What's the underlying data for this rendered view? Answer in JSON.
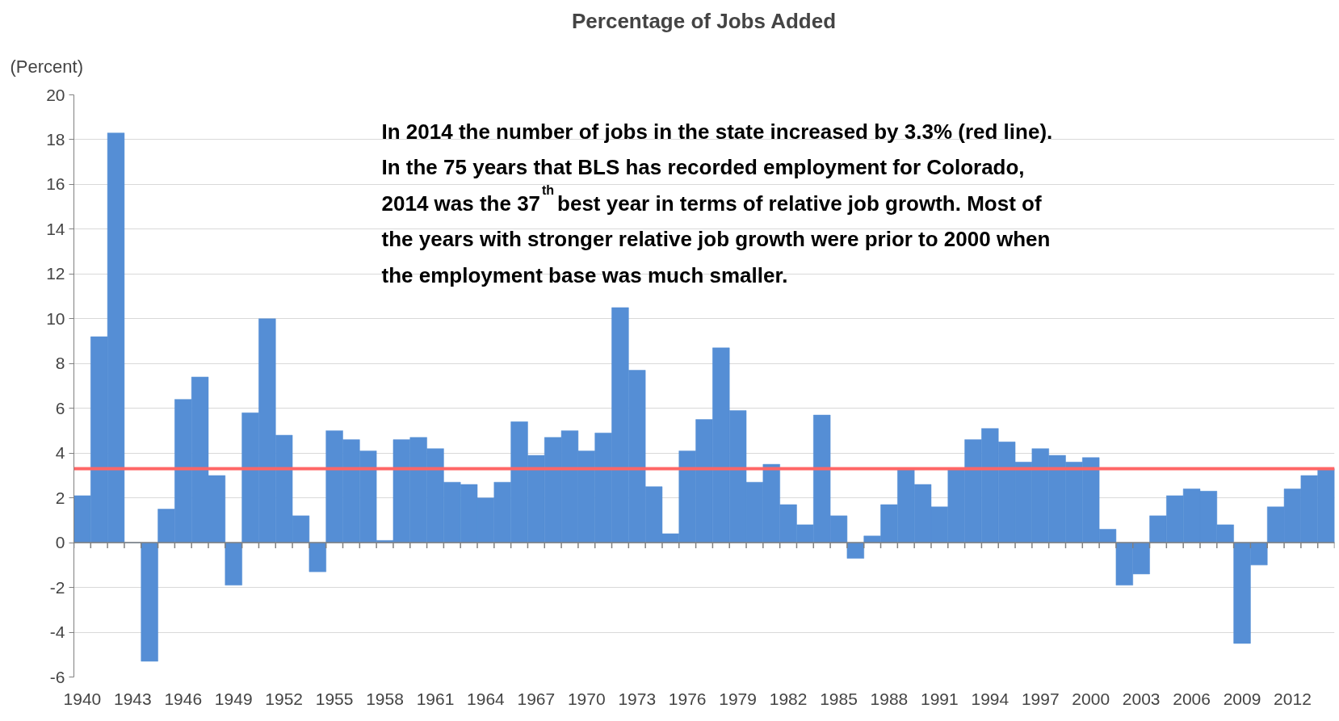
{
  "chart_data": {
    "type": "bar",
    "title": "Percentage of Jobs Added",
    "ylabel": "(Percent)",
    "categories": [
      "1940",
      null,
      null,
      "1943",
      null,
      null,
      "1946",
      null,
      null,
      "1949",
      null,
      null,
      "1952",
      null,
      null,
      "1955",
      null,
      null,
      "1958",
      null,
      null,
      "1961",
      null,
      null,
      "1964",
      null,
      null,
      "1967",
      null,
      null,
      "1970",
      null,
      null,
      "1973",
      null,
      null,
      "1976",
      null,
      null,
      "1979",
      null,
      null,
      "1982",
      null,
      null,
      "1985",
      null,
      null,
      "1988",
      null,
      null,
      "1991",
      null,
      null,
      "1994",
      null,
      null,
      "1997",
      null,
      null,
      "2000",
      null,
      null,
      "2003",
      null,
      null,
      "2006",
      null,
      null,
      "2009",
      null,
      null,
      "2012",
      null,
      null
    ],
    "values": [
      2.1,
      9.2,
      18.3,
      0,
      -5.3,
      1.5,
      6.4,
      7.4,
      3.0,
      -1.9,
      5.8,
      10.0,
      4.8,
      1.2,
      -1.3,
      5.0,
      4.6,
      4.1,
      0.1,
      4.6,
      4.7,
      4.2,
      2.7,
      2.6,
      2.0,
      2.7,
      5.4,
      3.9,
      4.7,
      5.0,
      4.1,
      4.9,
      10.5,
      7.7,
      2.5,
      0.4,
      4.1,
      5.5,
      8.7,
      5.9,
      2.7,
      3.5,
      1.7,
      0.8,
      5.7,
      1.2,
      -0.7,
      0.3,
      1.7,
      3.3,
      2.6,
      1.6,
      3.3,
      4.6,
      5.1,
      4.5,
      3.6,
      4.2,
      3.9,
      3.6,
      3.8,
      0.6,
      -1.9,
      -1.4,
      1.2,
      2.1,
      2.4,
      2.3,
      0.8,
      -4.5,
      -1.0,
      1.6,
      2.4,
      3.0,
      3.3
    ],
    "color": "#558ed5",
    "ylim": [
      -6,
      20
    ],
    "yticks": [
      -6,
      -4,
      -2,
      0,
      2,
      4,
      6,
      8,
      10,
      12,
      14,
      16,
      18,
      20
    ],
    "grid": "y",
    "ref_lines": [
      {
        "axis": "y",
        "value": 3.3,
        "color": "#ff6666"
      }
    ],
    "annotations": [
      "In 2014 the number of jobs in the state increased by 3.3% (red line).\nIn the 75 years that BLS has recorded employment for Colorado,\n2014 was the 37$^{th}$ best year in terms of relative job growth.  Most of\nthe years with stronger relative job growth were prior to 2000 when\nthe employment base was much smaller."
    ]
  }
}
